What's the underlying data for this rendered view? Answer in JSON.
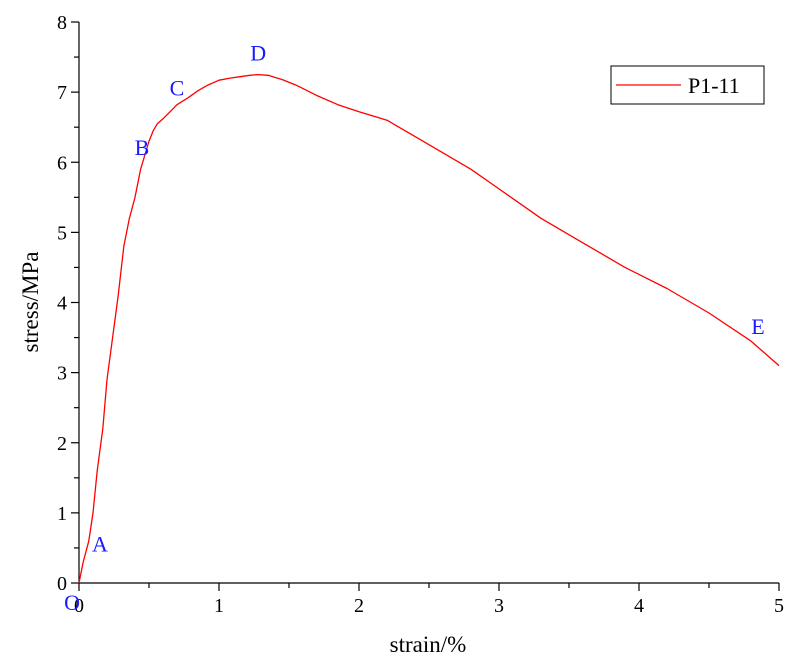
{
  "chart_data": {
    "type": "line",
    "xlabel": "strain/%",
    "ylabel": "stress/MPa",
    "xlim": [
      0,
      5
    ],
    "ylim": [
      0,
      8
    ],
    "xticks": [
      0,
      1,
      2,
      3,
      4,
      5
    ],
    "yticks": [
      0,
      1,
      2,
      3,
      4,
      5,
      6,
      7,
      8
    ],
    "grid": false,
    "legend_position": "top-right",
    "series": [
      {
        "name": "P1-11",
        "color": "#ff0000",
        "x": [
          0,
          0.03,
          0.07,
          0.1,
          0.13,
          0.17,
          0.2,
          0.24,
          0.28,
          0.32,
          0.36,
          0.4,
          0.44,
          0.47,
          0.5,
          0.53,
          0.56,
          0.6,
          0.65,
          0.7,
          0.78,
          0.85,
          0.92,
          1.0,
          1.08,
          1.15,
          1.22,
          1.28,
          1.35,
          1.45,
          1.55,
          1.7,
          1.85,
          2.0,
          2.2,
          2.5,
          2.8,
          3.0,
          3.3,
          3.6,
          3.9,
          4.2,
          4.5,
          4.8,
          5.0
        ],
        "y": [
          0,
          0.3,
          0.6,
          1.0,
          1.6,
          2.2,
          2.9,
          3.5,
          4.1,
          4.8,
          5.2,
          5.5,
          5.9,
          6.1,
          6.3,
          6.45,
          6.55,
          6.62,
          6.72,
          6.82,
          6.92,
          7.02,
          7.1,
          7.17,
          7.2,
          7.22,
          7.24,
          7.25,
          7.24,
          7.18,
          7.1,
          6.95,
          6.82,
          6.72,
          6.6,
          6.25,
          5.9,
          5.62,
          5.2,
          4.85,
          4.5,
          4.2,
          3.85,
          3.45,
          3.1
        ]
      }
    ],
    "annotations": [
      {
        "text": "O",
        "x": 0.0,
        "y": 0.0
      },
      {
        "text": "A",
        "x": 0.15,
        "y": 0.45
      },
      {
        "text": "B",
        "x": 0.45,
        "y": 6.1
      },
      {
        "text": "C",
        "x": 0.7,
        "y": 6.95
      },
      {
        "text": "D",
        "x": 1.28,
        "y": 7.45
      },
      {
        "text": "E",
        "x": 4.85,
        "y": 3.55
      }
    ]
  },
  "colors": {
    "series": "#ff0000",
    "annotation": "#1a1aff",
    "axis": "#000000"
  }
}
